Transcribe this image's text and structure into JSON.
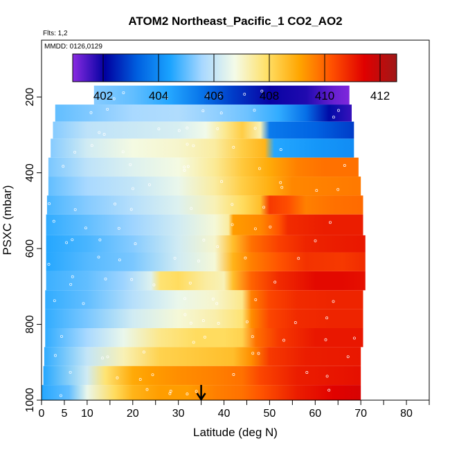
{
  "chart_data": {
    "type": "heatmap",
    "title": "ATOM2 Northeast_Pacific_1 CO2_AO2",
    "subtitle_flights": "Flts: 1,2",
    "subtitle_dates": "MMDD: 0126,0129",
    "xlabel": "Latitude (deg N)",
    "ylabel": "PSXC (mbar)",
    "xlim": [
      0,
      85
    ],
    "ylim": [
      1000,
      50
    ],
    "x_ticks": [
      0,
      5,
      10,
      20,
      30,
      40,
      50,
      60,
      70,
      80
    ],
    "y_ticks": [
      200,
      400,
      600,
      800,
      1000
    ],
    "colorbar": {
      "range": [
        400.9,
        412.6
      ],
      "ticks": [
        402,
        404,
        406,
        408,
        410,
        412
      ],
      "colors": [
        "#8a2be2",
        "#0000a0",
        "#0060e0",
        "#1aa3ff",
        "#a8d8ff",
        "#f4fbe8",
        "#ffe066",
        "#ffa500",
        "#ff5000",
        "#e00000",
        "#a01818"
      ]
    },
    "marker_latitude": 35,
    "grid": false,
    "field": {
      "pressure_bands": [
        {
          "p_top": 170,
          "p_bot": 220,
          "lat_min": 11.5,
          "lat_max": 67.5,
          "values": [
            [
              11.5,
              405.3
            ],
            [
              20,
              405.0
            ],
            [
              28,
              404.5
            ],
            [
              35,
              403.6
            ],
            [
              42,
              402.8
            ],
            [
              50,
              402.0
            ],
            [
              58,
              401.8
            ],
            [
              64,
              401.2
            ],
            [
              67.5,
              401.0
            ]
          ]
        },
        {
          "p_top": 220,
          "p_bot": 265,
          "lat_min": 3,
          "lat_max": 68,
          "values": [
            [
              3,
              405.0
            ],
            [
              12,
              405.3
            ],
            [
              20,
              405.6
            ],
            [
              30,
              405.7
            ],
            [
              38,
              405.4
            ],
            [
              45,
              405.1
            ],
            [
              52,
              404.6
            ],
            [
              58,
              403.5
            ],
            [
              63,
              402.2
            ],
            [
              68,
              401.6
            ]
          ]
        },
        {
          "p_top": 265,
          "p_bot": 310,
          "lat_min": 2.5,
          "lat_max": 68.5,
          "values": [
            [
              2.5,
              405.3
            ],
            [
              10,
              405.9
            ],
            [
              20,
              406.1
            ],
            [
              30,
              406.3
            ],
            [
              36,
              406.7
            ],
            [
              40,
              407.5
            ],
            [
              44,
              408.3
            ],
            [
              48,
              407.2
            ],
            [
              50,
              403.7
            ],
            [
              60,
              403.3
            ],
            [
              68.5,
              402.8
            ]
          ]
        },
        {
          "p_top": 310,
          "p_bot": 360,
          "lat_min": 2,
          "lat_max": 68.5,
          "values": [
            [
              2,
              405.3
            ],
            [
              10,
              406.2
            ],
            [
              20,
              406.8
            ],
            [
              30,
              407.0
            ],
            [
              38,
              407.4
            ],
            [
              44,
              408.3
            ],
            [
              49,
              408.8
            ],
            [
              51,
              404.5
            ],
            [
              60,
              404.2
            ],
            [
              68.5,
              404.0
            ]
          ]
        },
        {
          "p_top": 360,
          "p_bot": 410,
          "lat_min": 1.5,
          "lat_max": 69.5,
          "values": [
            [
              1.5,
              405.2
            ],
            [
              10,
              405.9
            ],
            [
              20,
              406.4
            ],
            [
              30,
              406.8
            ],
            [
              38,
              407.5
            ],
            [
              44,
              408.4
            ],
            [
              50,
              409.0
            ],
            [
              56,
              409.6
            ],
            [
              62,
              409.8
            ],
            [
              69.5,
              409.8
            ]
          ]
        },
        {
          "p_top": 410,
          "p_bot": 460,
          "lat_min": 1.5,
          "lat_max": 70,
          "values": [
            [
              1.5,
              405.0
            ],
            [
              10,
              405.6
            ],
            [
              20,
              406.0
            ],
            [
              30,
              406.6
            ],
            [
              38,
              407.4
            ],
            [
              44,
              408.3
            ],
            [
              50,
              408.9
            ],
            [
              55,
              409.5
            ],
            [
              62,
              409.6
            ],
            [
              70,
              409.7
            ]
          ]
        },
        {
          "p_top": 460,
          "p_bot": 510,
          "lat_min": 1.2,
          "lat_max": 70.5,
          "values": [
            [
              1.2,
              404.8
            ],
            [
              10,
              405.3
            ],
            [
              20,
              405.8
            ],
            [
              30,
              406.4
            ],
            [
              38,
              407.2
            ],
            [
              44,
              408.0
            ],
            [
              48,
              408.6
            ],
            [
              50,
              410.6
            ],
            [
              54,
              410.3
            ],
            [
              58,
              409.6
            ],
            [
              64,
              409.8
            ],
            [
              70.5,
              409.9
            ]
          ]
        },
        {
          "p_top": 510,
          "p_bot": 565,
          "lat_min": 1,
          "lat_max": 70.5,
          "values": [
            [
              1,
              404.6
            ],
            [
              10,
              405.0
            ],
            [
              20,
              405.5
            ],
            [
              30,
              406.2
            ],
            [
              38,
              406.9
            ],
            [
              41,
              407.4
            ],
            [
              42,
              409.2
            ],
            [
              48,
              409.5
            ],
            [
              52,
              410.2
            ],
            [
              54,
              410.8
            ],
            [
              62,
              411.0
            ],
            [
              70.5,
              411.0
            ]
          ]
        },
        {
          "p_top": 565,
          "p_bot": 610,
          "lat_min": 1,
          "lat_max": 71,
          "values": [
            [
              1,
              404.5
            ],
            [
              10,
              404.8
            ],
            [
              20,
              405.3
            ],
            [
              30,
              406.2
            ],
            [
              38,
              407.0
            ],
            [
              42,
              408.6
            ],
            [
              46,
              409.8
            ],
            [
              52,
              410.5
            ],
            [
              58,
              410.9
            ],
            [
              64,
              411.0
            ],
            [
              71,
              411.1
            ]
          ]
        },
        {
          "p_top": 610,
          "p_bot": 660,
          "lat_min": 1,
          "lat_max": 71,
          "values": [
            [
              1,
              404.5
            ],
            [
              10,
              404.9
            ],
            [
              20,
              405.2
            ],
            [
              30,
              406.2
            ],
            [
              38,
              406.9
            ],
            [
              42,
              408.8
            ],
            [
              46,
              409.6
            ],
            [
              52,
              410.2
            ],
            [
              58,
              410.7
            ],
            [
              66,
              410.6
            ],
            [
              71,
              410.8
            ]
          ]
        },
        {
          "p_top": 660,
          "p_bot": 710,
          "lat_min": 1,
          "lat_max": 71,
          "values": [
            [
              1,
              404.7
            ],
            [
              10,
              405.0
            ],
            [
              18,
              405.5
            ],
            [
              24,
              406.4
            ],
            [
              26,
              407.8
            ],
            [
              30,
              408.0
            ],
            [
              36,
              407.4
            ],
            [
              40,
              407.2
            ],
            [
              42,
              408.6
            ],
            [
              46,
              410.0
            ],
            [
              52,
              410.8
            ],
            [
              60,
              411.3
            ],
            [
              66,
              411.3
            ],
            [
              71,
              411.2
            ]
          ]
        },
        {
          "p_top": 710,
          "p_bot": 760,
          "lat_min": 0.8,
          "lat_max": 70.5,
          "values": [
            [
              0.8,
              404.6
            ],
            [
              10,
              405.0
            ],
            [
              20,
              405.8
            ],
            [
              30,
              406.6
            ],
            [
              38,
              407.0
            ],
            [
              44,
              407.6
            ],
            [
              46,
              409.6
            ],
            [
              50,
              410.4
            ],
            [
              56,
              410.8
            ],
            [
              64,
              410.9
            ],
            [
              70.5,
              410.9
            ]
          ]
        },
        {
          "p_top": 760,
          "p_bot": 810,
          "lat_min": 0.8,
          "lat_max": 70.5,
          "values": [
            [
              0.8,
              404.6
            ],
            [
              10,
              405.2
            ],
            [
              20,
              406.2
            ],
            [
              30,
              406.9
            ],
            [
              38,
              407.3
            ],
            [
              44,
              407.8
            ],
            [
              46,
              409.4
            ],
            [
              50,
              410.4
            ],
            [
              56,
              410.8
            ],
            [
              64,
              410.9
            ],
            [
              70.5,
              410.9
            ]
          ]
        },
        {
          "p_top": 810,
          "p_bot": 860,
          "lat_min": 0.8,
          "lat_max": 70.5,
          "values": [
            [
              0.8,
              404.6
            ],
            [
              10,
              405.6
            ],
            [
              18,
              406.6
            ],
            [
              26,
              407.6
            ],
            [
              34,
              408.0
            ],
            [
              40,
              408.0
            ],
            [
              44,
              408.2
            ],
            [
              47,
              409.8
            ],
            [
              52,
              410.6
            ],
            [
              60,
              411.1
            ],
            [
              70.5,
              411.1
            ]
          ]
        },
        {
          "p_top": 860,
          "p_bot": 910,
          "lat_min": 0.6,
          "lat_max": 70,
          "values": [
            [
              0.6,
              404.6
            ],
            [
              10,
              406.0
            ],
            [
              18,
              407.2
            ],
            [
              26,
              408.2
            ],
            [
              34,
              408.4
            ],
            [
              42,
              408.6
            ],
            [
              46,
              409.4
            ],
            [
              50,
              410.6
            ],
            [
              58,
              411.0
            ],
            [
              70,
              411.1
            ]
          ]
        },
        {
          "p_top": 910,
          "p_bot": 960,
          "lat_min": 0.4,
          "lat_max": 70,
          "values": [
            [
              0.4,
              404.5
            ],
            [
              10,
              406.2
            ],
            [
              14,
              407.8
            ],
            [
              20,
              409.0
            ],
            [
              24,
              409.2
            ],
            [
              30,
              409.4
            ],
            [
              38,
              409.6
            ],
            [
              44,
              409.8
            ],
            [
              48,
              410.4
            ],
            [
              56,
              411.0
            ],
            [
              70,
              411.2
            ]
          ]
        },
        {
          "p_top": 960,
          "p_bot": 1005,
          "lat_min": 0,
          "lat_max": 70,
          "values": [
            [
              0,
              404.5
            ],
            [
              6,
              405.0
            ],
            [
              10,
              406.6
            ],
            [
              16,
              408.0
            ],
            [
              20,
              408.8
            ],
            [
              26,
              409.2
            ],
            [
              32,
              409.2
            ],
            [
              38,
              409.6
            ],
            [
              44,
              409.8
            ],
            [
              48,
              410.2
            ],
            [
              56,
              411.0
            ],
            [
              64,
              411.4
            ],
            [
              70,
              411.6
            ]
          ]
        }
      ]
    }
  }
}
